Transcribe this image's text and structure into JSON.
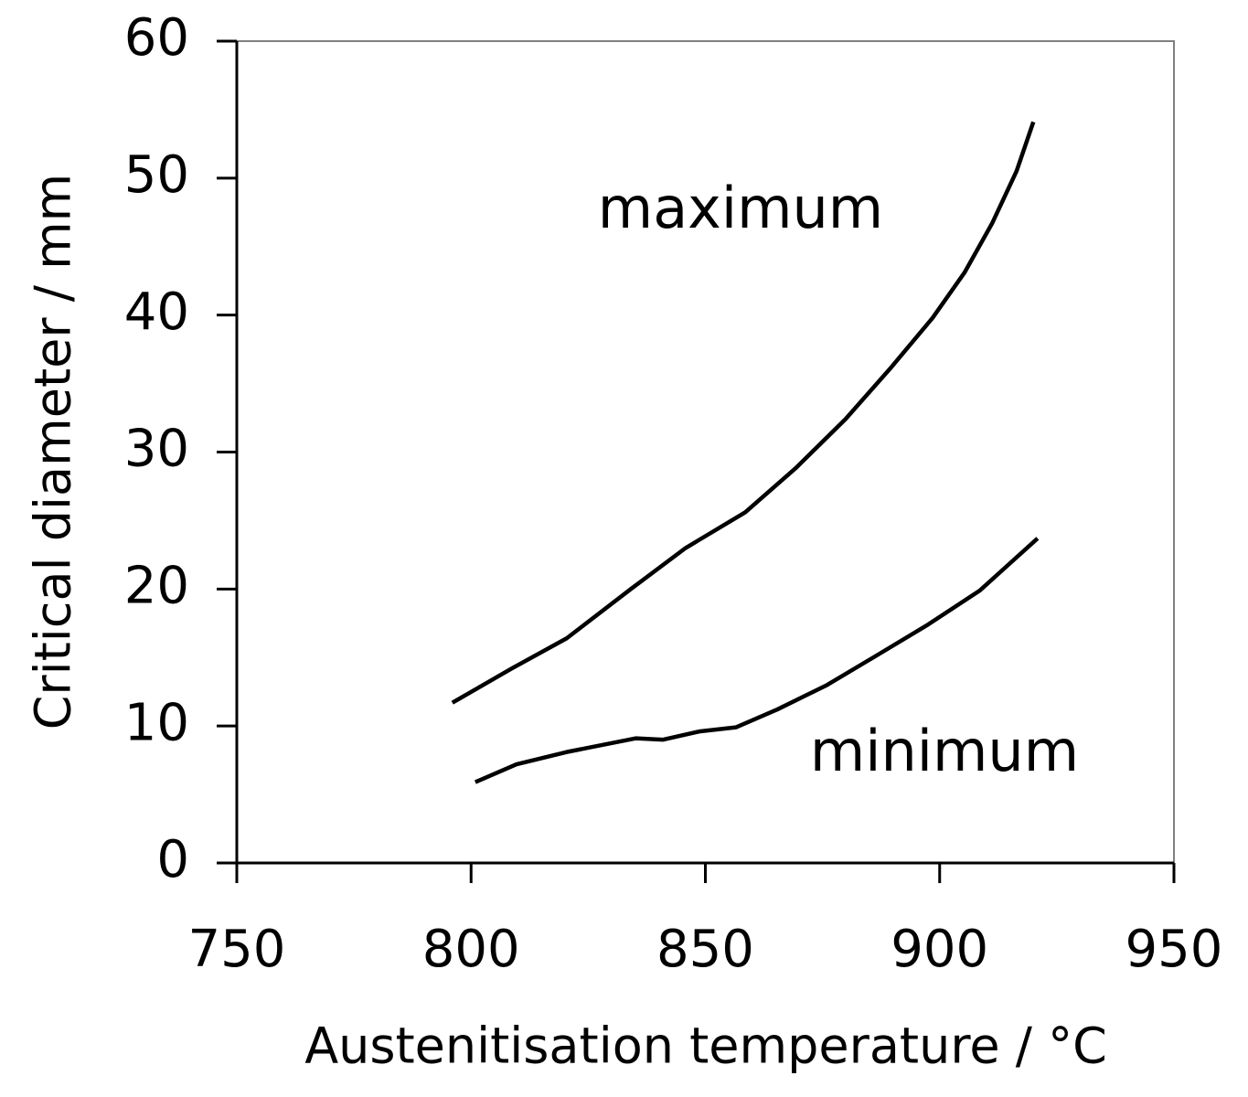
{
  "chart_data": {
    "type": "line",
    "xlabel": "Austenitisation temperature / °C",
    "ylabel": "Critical diameter / mm",
    "xlim": [
      750,
      950
    ],
    "xticks": [
      750,
      800,
      850,
      900,
      950
    ],
    "ylim": [
      0,
      60
    ],
    "yticks": [
      0,
      10,
      20,
      30,
      40,
      50,
      60
    ],
    "grid": false,
    "series": [
      {
        "name": "maximum",
        "color": "#000000",
        "x": [
          796.0,
          808.7,
          820.4,
          834.1,
          845.8,
          858.5,
          869.2,
          879.9,
          889.7,
          898.5,
          905.3,
          911.2,
          916.4,
          920.0
        ],
        "values": [
          11.7,
          14.2,
          16.4,
          20.0,
          23.0,
          25.6,
          28.8,
          32.4,
          36.2,
          39.8,
          43.1,
          46.7,
          50.5,
          54.1
        ]
      },
      {
        "name": "minimum",
        "color": "#000000",
        "x": [
          800.9,
          809.7,
          820.4,
          835.1,
          840.9,
          848.7,
          856.5,
          865.3,
          876.0,
          886.8,
          897.5,
          908.6,
          914.1,
          920.9
        ],
        "values": [
          5.9,
          7.2,
          8.1,
          9.1,
          9.0,
          9.6,
          9.9,
          11.2,
          13.0,
          15.2,
          17.4,
          19.9,
          21.6,
          23.7
        ]
      }
    ]
  }
}
